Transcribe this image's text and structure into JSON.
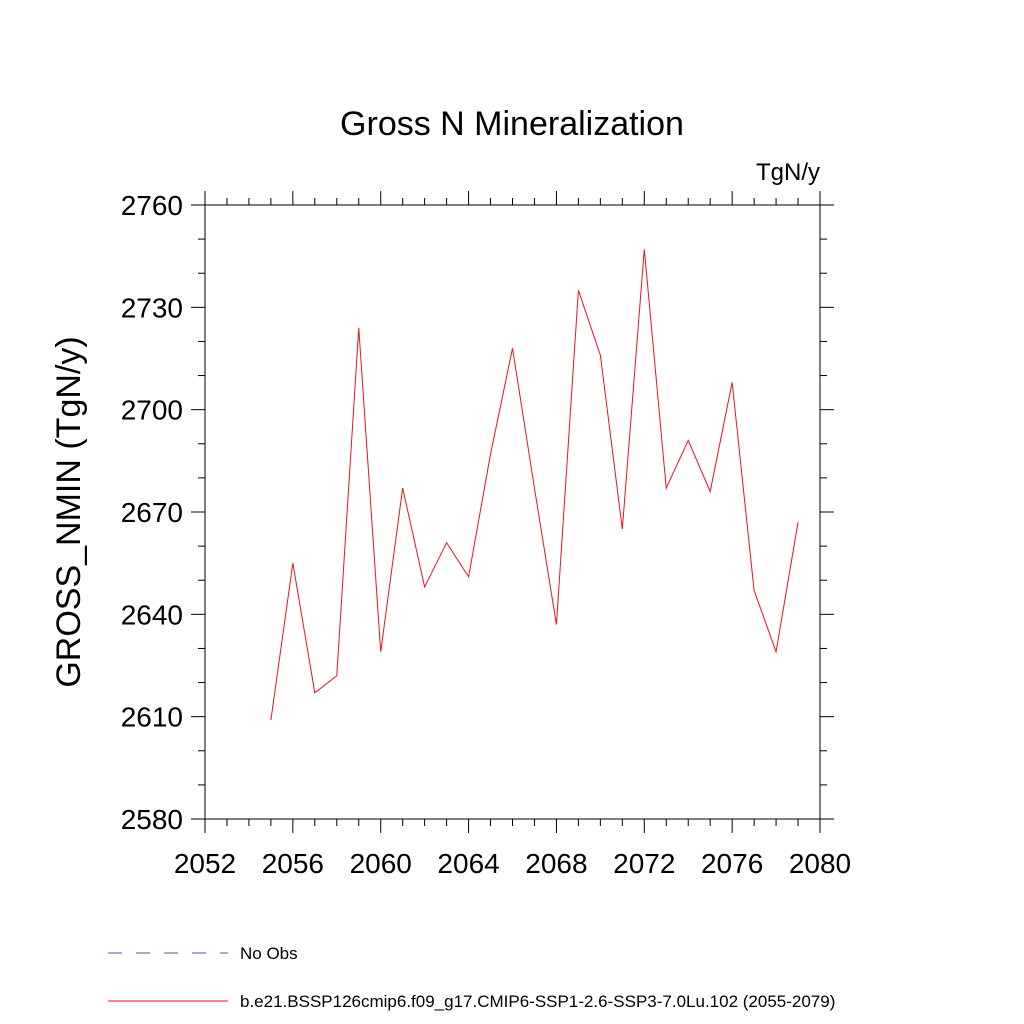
{
  "chart_data": {
    "type": "line",
    "title": "Gross N Mineralization",
    "units_label": "TgN/y",
    "ylabel": "GROSS_NMIN  (TgN/y)",
    "xlabel": "",
    "xlim": [
      2052,
      2080
    ],
    "ylim": [
      2580,
      2760
    ],
    "x_ticks": [
      2052,
      2056,
      2060,
      2064,
      2068,
      2072,
      2076,
      2080
    ],
    "y_ticks": [
      2580,
      2610,
      2640,
      2670,
      2700,
      2730,
      2760
    ],
    "grid": false,
    "series": [
      {
        "name": "b.e21.BSSP126cmip6.f09_g17.CMIP6-SSP1-2.6-SSP3-7.0Lu.102 (2055-2079)",
        "color": "#e8141e",
        "x": [
          2055,
          2056,
          2057,
          2058,
          2059,
          2060,
          2061,
          2062,
          2063,
          2064,
          2065,
          2066,
          2067,
          2068,
          2069,
          2070,
          2071,
          2072,
          2073,
          2074,
          2075,
          2076,
          2077,
          2078,
          2079
        ],
        "values": [
          2609,
          2655,
          2617,
          2622,
          2724,
          2629,
          2677,
          2648,
          2661,
          2651,
          2687,
          2718,
          2677,
          2637,
          2735,
          2716,
          2665,
          2747,
          2677,
          2691,
          2676,
          2708,
          2647,
          2629,
          2667
        ]
      }
    ],
    "legend": {
      "placement": "bottom-left",
      "entries": [
        {
          "label": "No Obs",
          "color": "#5a4fa8",
          "dashed": true
        },
        {
          "label": "b.e21.BSSP126cmip6.f09_g17.CMIP6-SSP1-2.6-SSP3-7.0Lu.102 (2055-2079)",
          "color": "#e8141e",
          "dashed": false
        }
      ]
    }
  }
}
